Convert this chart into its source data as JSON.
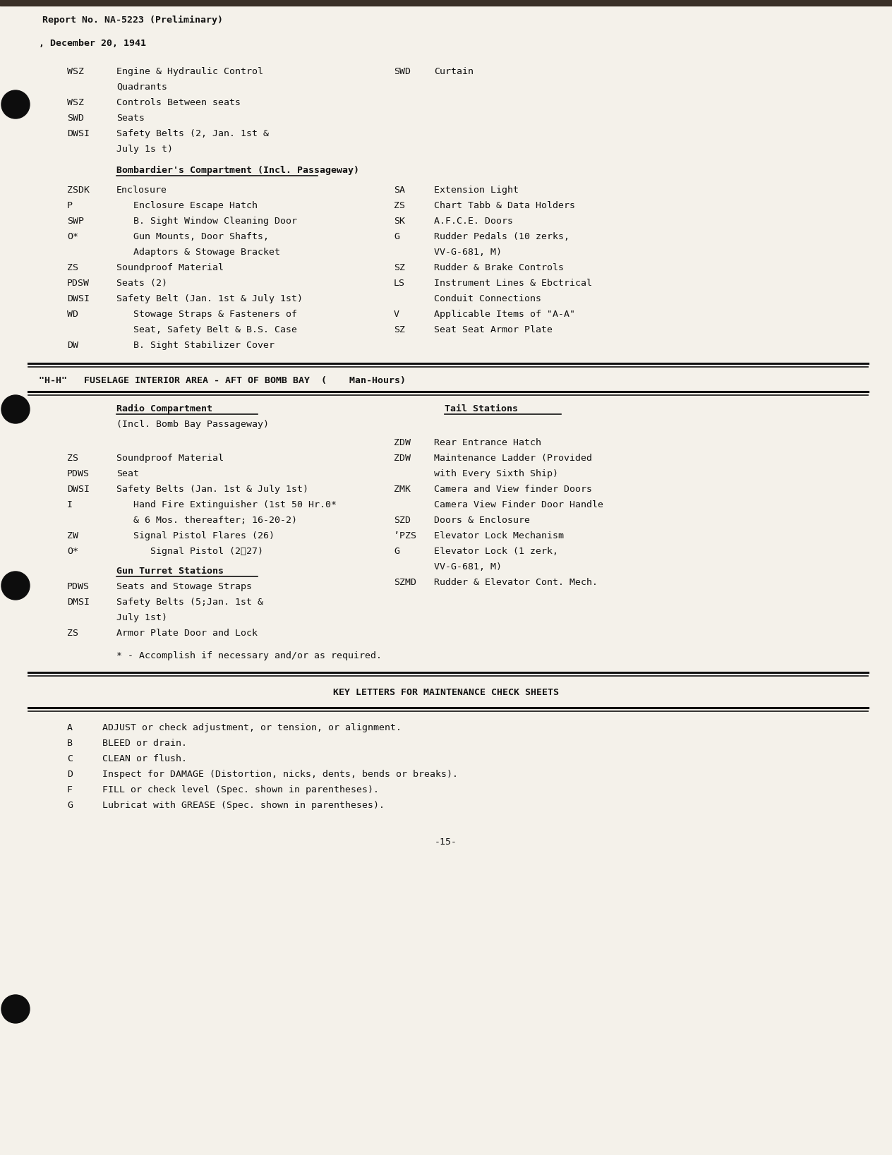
{
  "bg_color": "#f8f6f0",
  "text_color": "#1a1a1a",
  "page_number": "-15-",
  "header_line1": "Report No. NA-5223 (Preliminary)",
  "header_line2": ", December 20, 1941",
  "section2_header": "\"H-H\"   FUSELAGE INTERIOR AREA - AFT OF BOMB BAY  (    Man-Hours)",
  "radio_compartment_title": "Radio Compartment",
  "radio_compartment_subtitle": "(Incl. Bomb Bay Passageway)",
  "tail_stations_title": "Tail Stations",
  "gun_turret_title": "Gun Turret Stations",
  "key_letters_title": "KEY LETTERS FOR MAINTENANCE CHECK SHEETS",
  "note": "* - Accomplish if necessary and/or as required."
}
